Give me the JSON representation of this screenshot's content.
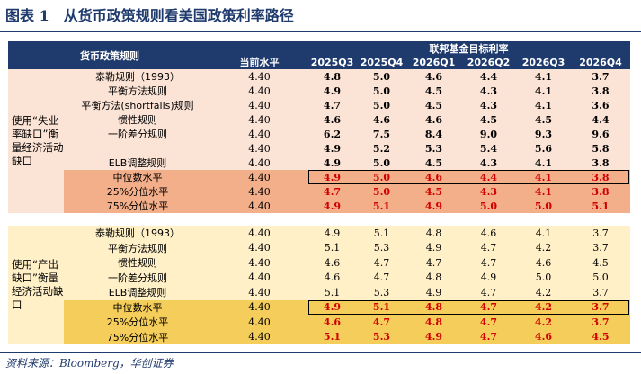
{
  "title": "图表 1　从货币政策规则看美国政策利率路径",
  "header": {
    "rules_label": "货币政策规则",
    "current_label": "当前水平",
    "target_label": "联邦基金目标利率",
    "quarters": [
      "2025Q3",
      "2025Q4",
      "2026Q1",
      "2026Q2",
      "2026Q3",
      "2026Q4"
    ]
  },
  "section1": {
    "side_label": "使用“失业率缺口”衡量经济活动缺口",
    "rows": [
      {
        "name": "泰勒规则（1993）",
        "current": "4.40",
        "values": [
          "4.8",
          "5.0",
          "4.6",
          "4.4",
          "4.1",
          "3.7"
        ]
      },
      {
        "name": "平衡方法规则",
        "current": "4.40",
        "values": [
          "4.9",
          "5.0",
          "4.5",
          "4.3",
          "4.1",
          "3.8"
        ]
      },
      {
        "name": "平衡方法(shortfalls)规则",
        "current": "4.40",
        "values": [
          "4.7",
          "5.0",
          "4.5",
          "4.3",
          "4.1",
          "3.6"
        ]
      },
      {
        "name": "惯性规则",
        "current": "4.40",
        "values": [
          "4.6",
          "4.6",
          "4.6",
          "4.5",
          "4.5",
          "4.4"
        ]
      },
      {
        "name": "一阶差分规则",
        "current": "4.40",
        "values": [
          "6.2",
          "7.5",
          "8.4",
          "9.0",
          "9.3",
          "9.6"
        ]
      },
      {
        "name": "",
        "current": "4.40",
        "values": [
          "4.9",
          "5.2",
          "5.3",
          "5.4",
          "5.6",
          "5.8"
        ]
      },
      {
        "name": "ELB调整规则",
        "current": "4.40",
        "values": [
          "4.9",
          "5.0",
          "4.5",
          "4.3",
          "4.1",
          "3.8"
        ]
      }
    ],
    "stats": [
      {
        "name": "中位数水平",
        "current": "4.40",
        "values": [
          "4.9",
          "5.0",
          "4.6",
          "4.4",
          "4.1",
          "3.8"
        ]
      },
      {
        "name": "25%分位水平",
        "current": "4.40",
        "values": [
          "4.7",
          "5.0",
          "4.5",
          "4.3",
          "4.1",
          "3.8"
        ]
      },
      {
        "name": "75%分位水平",
        "current": "4.40",
        "values": [
          "4.9",
          "5.1",
          "4.9",
          "5.0",
          "5.0",
          "5.1"
        ]
      }
    ]
  },
  "section2": {
    "side_label": "使用“产出缺口”衡量经济活动缺口",
    "rows": [
      {
        "name": "泰勒规则（1993）",
        "current": "4.40",
        "values": [
          "4.9",
          "5.1",
          "4.8",
          "4.6",
          "4.1",
          "3.7"
        ]
      },
      {
        "name": "平衡方法规则",
        "current": "4.40",
        "values": [
          "5.1",
          "5.3",
          "4.9",
          "4.7",
          "4.2",
          "3.7"
        ]
      },
      {
        "name": "惯性规则",
        "current": "4.40",
        "values": [
          "4.6",
          "4.7",
          "4.7",
          "4.7",
          "4.6",
          "4.5"
        ]
      },
      {
        "name": "一阶差分规则",
        "current": "4.40",
        "values": [
          "4.6",
          "4.7",
          "4.8",
          "4.9",
          "5.0",
          "5.0"
        ]
      },
      {
        "name": "ELB调整规则",
        "current": "4.40",
        "values": [
          "5.1",
          "5.3",
          "4.9",
          "4.7",
          "4.2",
          "3.7"
        ]
      }
    ],
    "stats": [
      {
        "name": "中位数水平",
        "current": "4.40",
        "values": [
          "4.9",
          "5.1",
          "4.8",
          "4.7",
          "4.2",
          "3.7"
        ]
      },
      {
        "name": "25%分位水平",
        "current": "4.40",
        "values": [
          "4.6",
          "4.7",
          "4.8",
          "4.7",
          "4.2",
          "3.7"
        ]
      },
      {
        "name": "75%分位水平",
        "current": "4.40",
        "values": [
          "5.1",
          "5.3",
          "4.9",
          "4.7",
          "4.6",
          "4.5"
        ]
      }
    ]
  },
  "source": "资料来源：Bloomberg，华创证券",
  "colors": {
    "header_bg": "#1f3a6d",
    "section1_bg": "#fbe3d6",
    "section1_highlight": "#f3ae8a",
    "section2_bg": "#fff0c8",
    "section2_highlight": "#f5cd5a",
    "stat_value_color": "#d00000"
  }
}
